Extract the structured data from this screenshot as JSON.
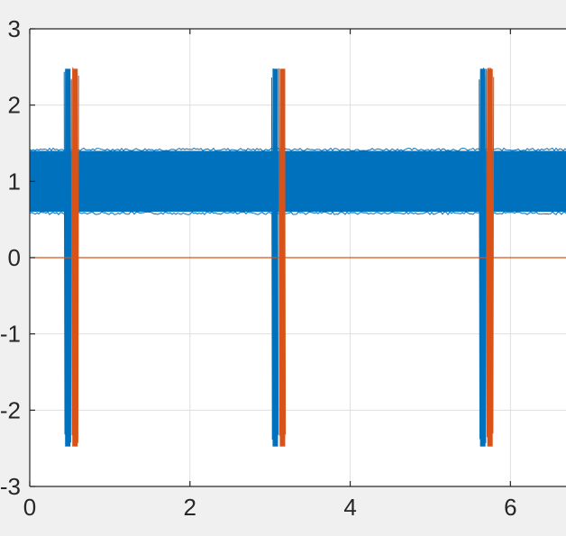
{
  "chart_data": {
    "type": "line",
    "title": "",
    "xlabel": "",
    "ylabel": "",
    "xlim": [
      0,
      6.75
    ],
    "ylim": [
      -3,
      3
    ],
    "x_ticks": [
      0,
      2,
      4,
      6
    ],
    "y_ticks": [
      -3,
      -2,
      -1,
      0,
      1,
      2,
      3
    ],
    "x_tick_labels": [
      "0",
      "2",
      "4",
      "6"
    ],
    "y_tick_labels": [
      "-3",
      "-2",
      "-1",
      "0",
      "1",
      "2",
      "3"
    ],
    "grid": true,
    "legend": "none",
    "series": [
      {
        "color": "#0072BD",
        "band": {
          "x_start": 0,
          "x_end": 6.75,
          "y_min": 0.6,
          "y_max": 1.4
        },
        "bursts": [
          {
            "x_start": 0.43,
            "x_end": 0.52,
            "y_min": -2.5,
            "y_max": 2.5
          },
          {
            "x_start": 3.02,
            "x_end": 3.11,
            "y_min": -2.5,
            "y_max": 2.5
          },
          {
            "x_start": 5.61,
            "x_end": 5.7,
            "y_min": -2.5,
            "y_max": 2.5
          }
        ]
      },
      {
        "color": "#D95319",
        "baseline": 0,
        "bursts": [
          {
            "x_start": 0.52,
            "x_end": 0.61,
            "y_min": -2.5,
            "y_max": 2.5
          },
          {
            "x_start": 3.11,
            "x_end": 3.2,
            "y_min": -2.5,
            "y_max": 2.5
          },
          {
            "x_start": 5.7,
            "x_end": 5.79,
            "y_min": -2.5,
            "y_max": 2.5
          }
        ]
      }
    ]
  }
}
